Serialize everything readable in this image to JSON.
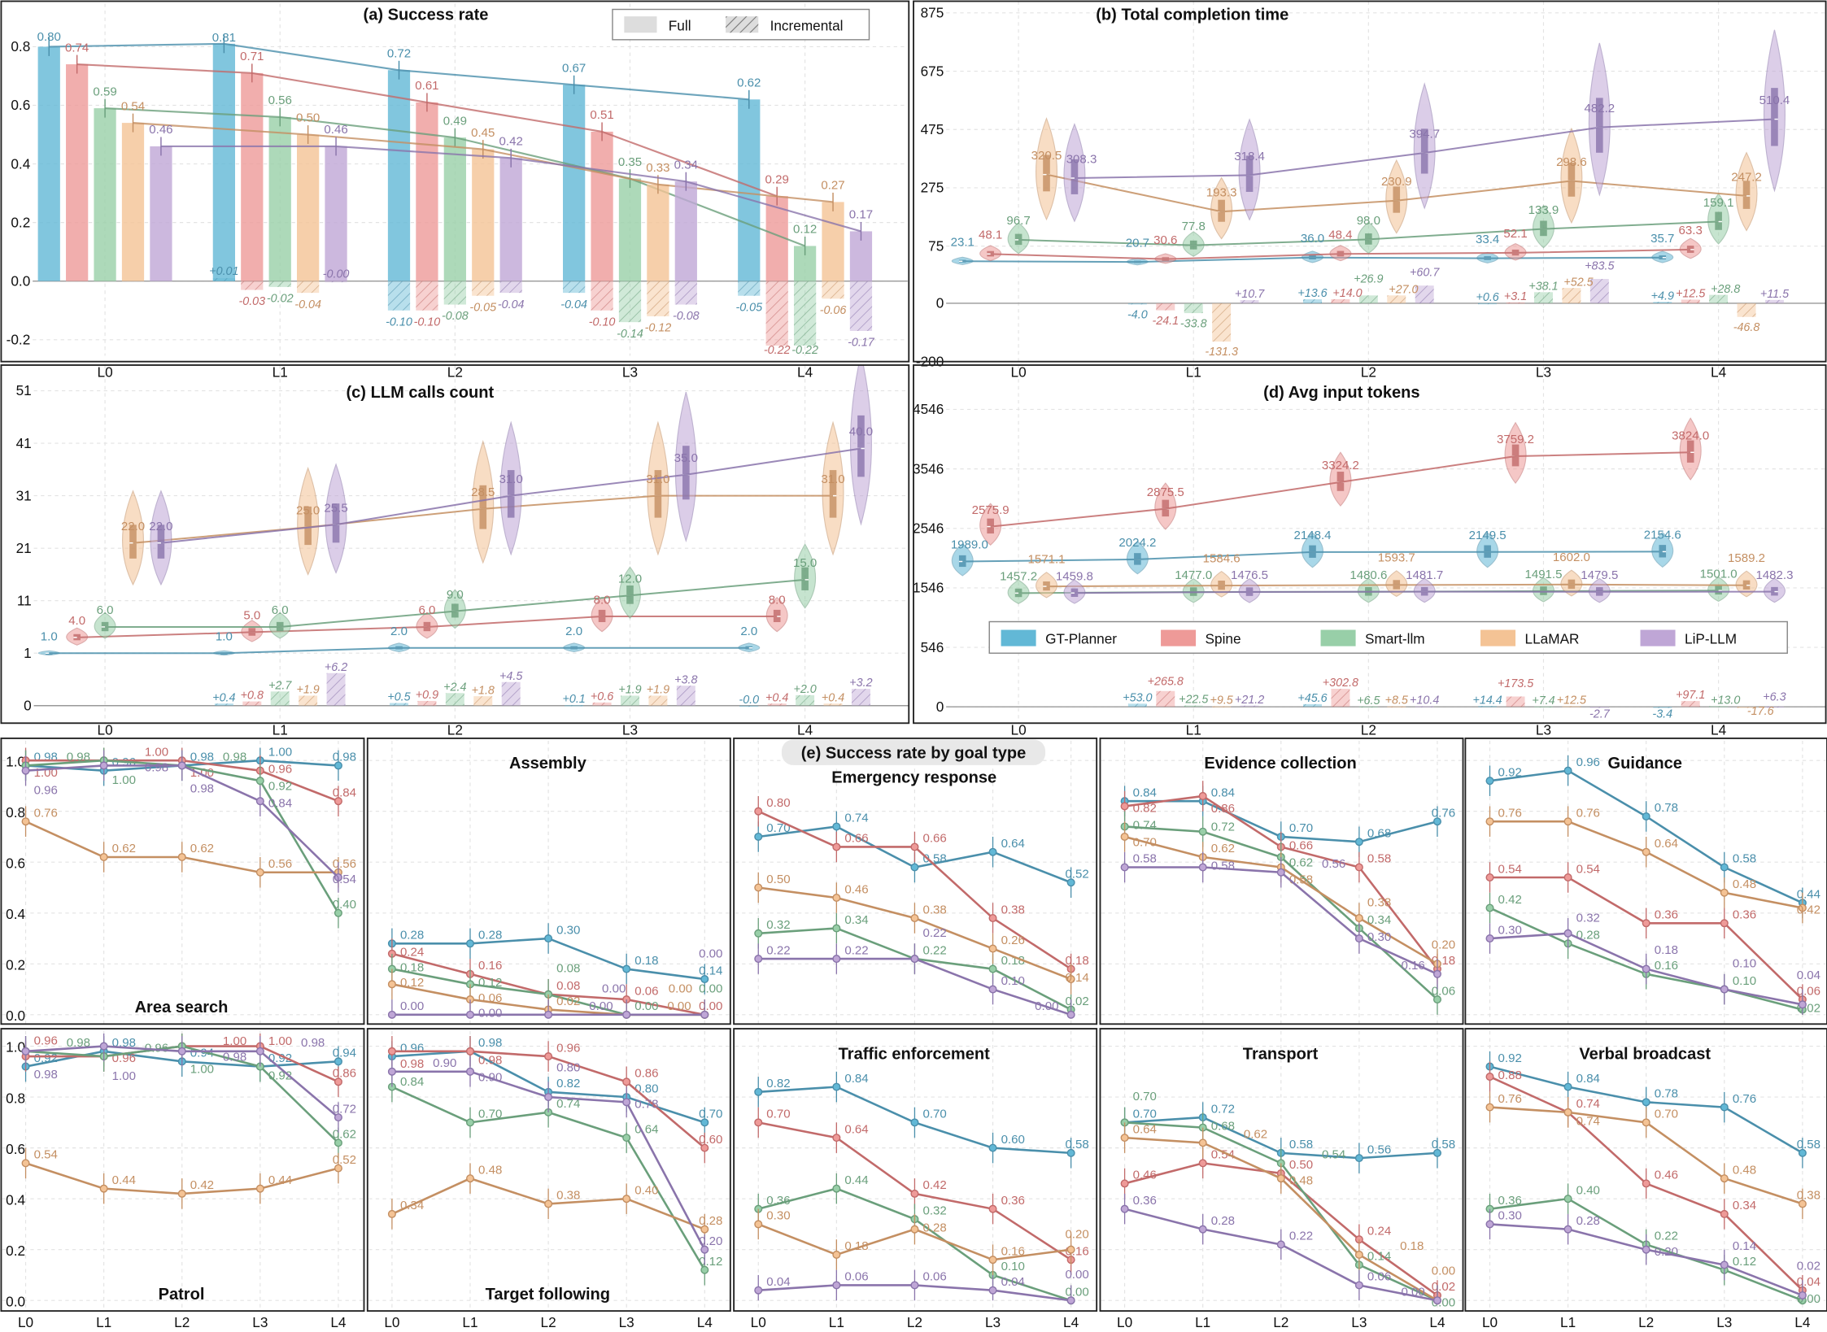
{
  "methods": [
    {
      "name": "GT-Planner",
      "color": "#62b8d6",
      "line": "#4a8fab"
    },
    {
      "name": "Spine",
      "color": "#ee9a98",
      "line": "#c26a6a"
    },
    {
      "name": "Smart-llm",
      "color": "#98cfa8",
      "line": "#6a9f7b"
    },
    {
      "name": "LLaMAR",
      "color": "#f4c395",
      "line": "#c48f62"
    },
    {
      "name": "LiP-LLM",
      "color": "#bfa6d6",
      "line": "#8a74ab"
    }
  ],
  "chart_data": [
    {
      "type": "bar",
      "title": "(a) Success rate",
      "categories": [
        "L0",
        "L1",
        "L2",
        "L3",
        "L4"
      ],
      "yticks": [
        "-0.2",
        "0.0",
        "0.2",
        "0.4",
        "0.6",
        "0.8"
      ],
      "grid": true,
      "legend": {
        "entries": [
          "Full",
          "Incremental"
        ],
        "placement": "top-right"
      },
      "series": [
        {
          "name": "GT-Planner",
          "full": [
            "0.80",
            "0.81",
            "0.72",
            "0.67",
            "0.62"
          ],
          "incremental": [
            null,
            "+0.01",
            "-0.10",
            "-0.04",
            "-0.05"
          ]
        },
        {
          "name": "Spine",
          "full": [
            "0.74",
            "0.71",
            "0.61",
            "0.51",
            "0.29"
          ],
          "incremental": [
            null,
            "-0.03",
            "-0.10",
            "-0.10",
            "-0.22"
          ]
        },
        {
          "name": "Smart-llm",
          "full": [
            "0.59",
            "0.56",
            "0.49",
            "0.35",
            "0.12"
          ],
          "incremental": [
            null,
            "-0.02",
            "-0.08",
            "-0.14",
            "-0.22"
          ]
        },
        {
          "name": "LLaMAR",
          "full": [
            "0.54",
            "0.50",
            "0.45",
            "0.33",
            "0.27"
          ],
          "incremental": [
            null,
            "-0.04",
            "-0.05",
            "-0.12",
            "-0.06"
          ]
        },
        {
          "name": "LiP-LLM",
          "full": [
            "0.46",
            "0.46",
            "0.42",
            "0.34",
            "0.17"
          ],
          "incremental": [
            null,
            "-0.00",
            "-0.04",
            "-0.08",
            "-0.17"
          ]
        }
      ]
    },
    {
      "type": "violin",
      "title": "(b) Total completion time",
      "categories": [
        "L0",
        "L1",
        "L2",
        "L3",
        "L4"
      ],
      "yticks": [
        "-200",
        "0",
        "75",
        "275",
        "475",
        "675",
        "875"
      ],
      "grid": true,
      "series": [
        {
          "name": "GT-Planner",
          "full": [
            "23.1",
            "20.7",
            "36.0",
            "33.4",
            "35.7"
          ],
          "incremental": [
            null,
            "-4.0",
            "+13.6",
            "+0.6",
            "+4.9"
          ]
        },
        {
          "name": "Spine",
          "full": [
            "48.1",
            "30.6",
            "48.4",
            "52.1",
            "63.3"
          ],
          "incremental": [
            null,
            "-24.1",
            "+14.0",
            "+3.1",
            "+12.5"
          ]
        },
        {
          "name": "Smart-llm",
          "full": [
            "96.7",
            "77.8",
            "98.0",
            "133.9",
            "159.1"
          ],
          "incremental": [
            null,
            "-33.8",
            "+26.9",
            "+38.1",
            "+28.8"
          ]
        },
        {
          "name": "LLaMAR",
          "full": [
            "320.5",
            "193.3",
            "230.9",
            "298.6",
            "247.2"
          ],
          "incremental": [
            null,
            "-131.3",
            "+27.0",
            "+52.5",
            "-46.8"
          ]
        },
        {
          "name": "LiP-LLM",
          "full": [
            "308.3",
            "318.4",
            "394.7",
            "482.2",
            "510.4"
          ],
          "incremental": [
            null,
            "+10.7",
            "+60.7",
            "+83.5",
            "+11.5"
          ]
        }
      ]
    },
    {
      "type": "violin",
      "title": "(c) LLM calls count",
      "categories": [
        "L0",
        "L1",
        "L2",
        "L3",
        "L4"
      ],
      "yticks": [
        "0",
        "1",
        "11",
        "21",
        "31",
        "41",
        "51"
      ],
      "grid": true,
      "series": [
        {
          "name": "GT-Planner",
          "full": [
            "1.0",
            "1.0",
            "2.0",
            "2.0",
            "2.0"
          ],
          "incremental": [
            null,
            "+0.4",
            "+0.5",
            "+0.1",
            "-0.0"
          ]
        },
        {
          "name": "Spine",
          "full": [
            "4.0",
            "5.0",
            "6.0",
            "8.0",
            "8.0"
          ],
          "incremental": [
            null,
            "+0.8",
            "+0.9",
            "+0.6",
            "+0.4"
          ]
        },
        {
          "name": "Smart-llm",
          "full": [
            "6.0",
            "6.0",
            "9.0",
            "12.0",
            "15.0"
          ],
          "incremental": [
            null,
            "+2.7",
            "+2.4",
            "+1.9",
            "+2.0"
          ]
        },
        {
          "name": "LLaMAR",
          "full": [
            "22.0",
            "25.0",
            "28.5",
            "31.0",
            "31.0"
          ],
          "incremental": [
            null,
            "+1.9",
            "+1.8",
            "+1.9",
            "+0.4"
          ]
        },
        {
          "name": "LiP-LLM",
          "full": [
            "22.0",
            "25.5",
            "31.0",
            "35.0",
            "40.0"
          ],
          "incremental": [
            null,
            "+6.2",
            "+4.5",
            "+3.8",
            "+3.2"
          ]
        }
      ]
    },
    {
      "type": "violin",
      "title": "(d) Avg input tokens",
      "categories": [
        "L0",
        "L1",
        "L2",
        "L3",
        "L4"
      ],
      "yticks": [
        "0",
        "546",
        "1546",
        "2546",
        "3546",
        "4546"
      ],
      "grid": true,
      "legend": {
        "entries": [
          "GT-Planner",
          "Spine",
          "Smart-llm",
          "LLaMAR",
          "LiP-LLM"
        ],
        "placement": "bottom"
      },
      "series": [
        {
          "name": "GT-Planner",
          "full": [
            "1989.0",
            "2024.2",
            "2148.4",
            "2149.5",
            "2154.6"
          ],
          "incremental": [
            null,
            "+53.0",
            "+45.6",
            "+14.4",
            "-3.4"
          ]
        },
        {
          "name": "Spine",
          "full": [
            "2575.9",
            "2875.5",
            "3324.2",
            "3759.2",
            "3824.0"
          ],
          "incremental": [
            null,
            "+265.8",
            "+302.8",
            "+173.5",
            "+97.1"
          ]
        },
        {
          "name": "Smart-llm",
          "full": [
            "1457.2",
            "1477.0",
            "1480.6",
            "1491.5",
            "1501.0"
          ],
          "incremental": [
            null,
            "+22.5",
            "+6.5",
            "+7.4",
            "+13.0"
          ]
        },
        {
          "name": "LLaMAR",
          "full": [
            "1571.1",
            "1584.6",
            "1593.7",
            "1602.0",
            "1589.2"
          ],
          "incremental": [
            null,
            "+9.5",
            "+8.5",
            "+12.5",
            "-17.6"
          ]
        },
        {
          "name": "LiP-LLM",
          "full": [
            "1459.8",
            "1476.5",
            "1481.7",
            "1479.5",
            "1482.3"
          ],
          "incremental": [
            null,
            "+21.2",
            "+10.4",
            "-2.7",
            "+6.3"
          ]
        }
      ]
    },
    {
      "type": "line",
      "title": "(e) Success rate by goal type",
      "categories": [
        "L0",
        "L1",
        "L2",
        "L3",
        "L4"
      ],
      "yticks": [
        "0.0",
        "0.2",
        "0.4",
        "0.6",
        "0.8",
        "1.0"
      ],
      "ylim": [
        0,
        1
      ],
      "grid": true,
      "panels": [
        {
          "title": "Area search",
          "title_position": "bottom",
          "series": [
            [
              "0.98",
              "0.96",
              "0.98",
              "1.00",
              "0.98"
            ],
            [
              "1.00",
              "1.00",
              "1.00",
              "0.96",
              "0.84"
            ],
            [
              "0.98",
              "1.00",
              "0.98",
              "0.92",
              "0.40"
            ],
            [
              "0.76",
              "0.62",
              "0.62",
              "0.56",
              "0.56"
            ],
            [
              "0.96",
              "0.98",
              "0.98",
              "0.84",
              "0.54"
            ]
          ]
        },
        {
          "title": "Assembly",
          "title_position": "top",
          "series": [
            [
              "0.28",
              "0.28",
              "0.30",
              "0.18",
              "0.14"
            ],
            [
              "0.24",
              "0.16",
              "0.08",
              "0.06",
              "0.00"
            ],
            [
              "0.18",
              "0.12",
              "0.08",
              "0.00",
              "0.00"
            ],
            [
              "0.12",
              "0.06",
              "0.02",
              "0.00",
              "0.00"
            ],
            [
              "0.00",
              "0.00",
              "0.00",
              "0.00",
              "0.00"
            ]
          ]
        },
        {
          "title": "Emergency response",
          "title_position": "top",
          "series": [
            [
              "0.70",
              "0.74",
              "0.58",
              "0.64",
              "0.52"
            ],
            [
              "0.80",
              "0.66",
              "0.66",
              "0.38",
              "0.18"
            ],
            [
              "0.32",
              "0.34",
              "0.22",
              "0.18",
              "0.02"
            ],
            [
              "0.50",
              "0.46",
              "0.38",
              "0.26",
              "0.14"
            ],
            [
              "0.22",
              "0.22",
              "0.22",
              "0.10",
              "0.00"
            ]
          ]
        },
        {
          "title": "Evidence collection",
          "title_position": "top",
          "series": [
            [
              "0.84",
              "0.84",
              "0.70",
              "0.68",
              "0.76"
            ],
            [
              "0.82",
              "0.86",
              "0.66",
              "0.58",
              "0.18"
            ],
            [
              "0.74",
              "0.72",
              "0.62",
              "0.34",
              "0.06"
            ],
            [
              "0.70",
              "0.62",
              "0.58",
              "0.38",
              "0.20"
            ],
            [
              "0.58",
              "0.58",
              "0.56",
              "0.30",
              "0.16"
            ]
          ]
        },
        {
          "title": "Guidance",
          "title_position": "top",
          "series": [
            [
              "0.92",
              "0.96",
              "0.78",
              "0.58",
              "0.44"
            ],
            [
              "0.54",
              "0.54",
              "0.36",
              "0.36",
              "0.06"
            ],
            [
              "0.42",
              "0.28",
              "0.16",
              "0.10",
              "0.02"
            ],
            [
              "0.76",
              "0.76",
              "0.64",
              "0.48",
              "0.42"
            ],
            [
              "0.30",
              "0.32",
              "0.18",
              "0.10",
              "0.04"
            ]
          ]
        },
        {
          "title": "Patrol",
          "title_position": "bottom",
          "series": [
            [
              "0.92",
              "0.98",
              "0.94",
              "0.92",
              "0.94"
            ],
            [
              "0.96",
              "0.96",
              "1.00",
              "1.00",
              "0.86"
            ],
            [
              "0.98",
              "0.96",
              "1.00",
              "0.92",
              "0.62"
            ],
            [
              "0.54",
              "0.44",
              "0.42",
              "0.44",
              "0.52"
            ],
            [
              "0.98",
              "1.00",
              "0.98",
              "0.98",
              "0.72"
            ]
          ]
        },
        {
          "title": "Target following",
          "title_position": "bottom",
          "series": [
            [
              "0.96",
              "0.98",
              "0.82",
              "0.80",
              "0.70"
            ],
            [
              "0.98",
              "0.98",
              "0.96",
              "0.86",
              "0.60"
            ],
            [
              "0.84",
              "0.70",
              "0.74",
              "0.64",
              "0.12"
            ],
            [
              "0.34",
              "0.48",
              "0.38",
              "0.40",
              "0.28"
            ],
            [
              "0.90",
              "0.90",
              "0.80",
              "0.78",
              "0.20"
            ]
          ]
        },
        {
          "title": "Traffic enforcement",
          "title_position": "top",
          "series": [
            [
              "0.82",
              "0.84",
              "0.70",
              "0.60",
              "0.58"
            ],
            [
              "0.70",
              "0.64",
              "0.42",
              "0.36",
              "0.16"
            ],
            [
              "0.36",
              "0.44",
              "0.32",
              "0.10",
              "0.00"
            ],
            [
              "0.30",
              "0.18",
              "0.28",
              "0.16",
              "0.20"
            ],
            [
              "0.04",
              "0.06",
              "0.06",
              "0.04",
              "0.00"
            ]
          ]
        },
        {
          "title": "Transport",
          "title_position": "top",
          "series": [
            [
              "0.70",
              "0.72",
              "0.58",
              "0.56",
              "0.58"
            ],
            [
              "0.46",
              "0.54",
              "0.50",
              "0.24",
              "0.02"
            ],
            [
              "0.70",
              "0.68",
              "0.54",
              "0.14",
              "0.00"
            ],
            [
              "0.64",
              "0.62",
              "0.48",
              "0.18",
              "0.00"
            ],
            [
              "0.36",
              "0.28",
              "0.22",
              "0.06",
              "0.00"
            ]
          ]
        },
        {
          "title": "Verbal broadcast",
          "title_position": "top",
          "series": [
            [
              "0.92",
              "0.84",
              "0.78",
              "0.76",
              "0.58"
            ],
            [
              "0.88",
              "0.74",
              "0.46",
              "0.34",
              "0.04"
            ],
            [
              "0.36",
              "0.40",
              "0.22",
              "0.12",
              "0.00"
            ],
            [
              "0.76",
              "0.74",
              "0.70",
              "0.48",
              "0.38"
            ],
            [
              "0.30",
              "0.28",
              "0.20",
              "0.14",
              "0.02"
            ]
          ]
        }
      ]
    }
  ]
}
